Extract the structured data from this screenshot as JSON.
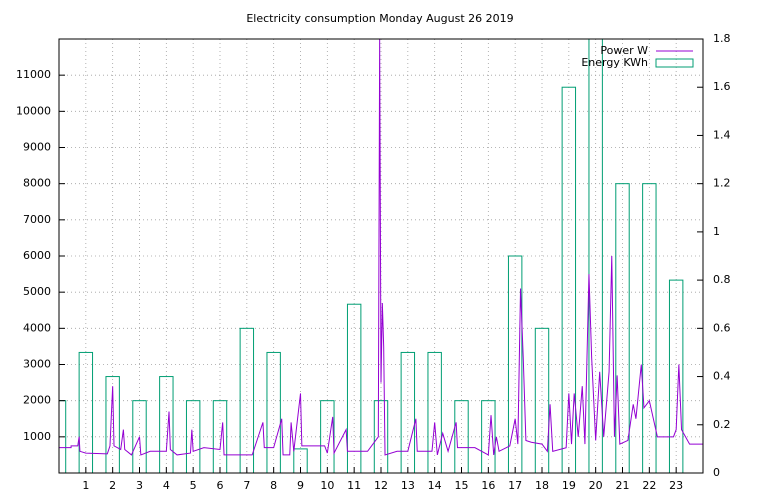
{
  "chart_data": {
    "type": "line",
    "title": "Electricity consumption Monday August 26 2019",
    "xlim": [
      0,
      24
    ],
    "ylim": [
      0,
      12000
    ],
    "y2lim": [
      0,
      1.8
    ],
    "xticks": [
      1,
      2,
      3,
      4,
      5,
      6,
      7,
      8,
      9,
      10,
      11,
      12,
      13,
      14,
      15,
      16,
      17,
      18,
      19,
      20,
      21,
      22,
      23
    ],
    "yticks": [
      1000,
      2000,
      3000,
      4000,
      5000,
      6000,
      7000,
      8000,
      9000,
      10000,
      11000
    ],
    "y2ticks": [
      0,
      0.2,
      0.4,
      0.6,
      0.8,
      1,
      1.2,
      1.4,
      1.6,
      1.8
    ],
    "grid": true,
    "legend": "top-right",
    "series": [
      {
        "name": "Power W",
        "type": "line",
        "color": "#9400d3",
        "x": [
          0,
          0.45,
          0.45,
          0.7,
          0.75,
          0.78,
          1,
          1.8,
          1.9,
          2.0,
          2.05,
          2.3,
          2.4,
          2.45,
          2.7,
          3.0,
          3.05,
          3.4,
          4.0,
          4.1,
          4.15,
          4.4,
          4.9,
          4.95,
          5.0,
          5.4,
          6.0,
          6.1,
          6.15,
          6.8,
          7.2,
          7.6,
          7.65,
          8.0,
          8.3,
          8.35,
          8.6,
          8.65,
          8.75,
          9.0,
          9.05,
          9.9,
          10.0,
          10.2,
          10.25,
          10.7,
          10.75,
          11.5,
          11.9,
          11.95,
          12.0,
          12.05,
          12.1,
          12.15,
          12.6,
          13.0,
          13.3,
          13.35,
          13.9,
          14.0,
          14.1,
          14.3,
          14.5,
          14.8,
          14.85,
          15.5,
          16.0,
          16.1,
          16.2,
          16.3,
          16.4,
          16.8,
          17.0,
          17.1,
          17.2,
          17.3,
          17.4,
          17.6,
          18.0,
          18.2,
          18.3,
          18.4,
          18.9,
          19.0,
          19.1,
          19.2,
          19.35,
          19.5,
          19.6,
          19.75,
          19.85,
          20.0,
          20.15,
          20.3,
          20.5,
          20.6,
          20.7,
          20.8,
          20.9,
          21.2,
          21.4,
          21.5,
          21.7,
          21.8,
          22.0,
          22.3,
          22.9,
          23.0,
          23.1,
          23.2,
          23.5,
          24.0
        ],
        "values": [
          700,
          700,
          750,
          750,
          1000,
          600,
          550,
          530,
          750,
          2400,
          750,
          650,
          1200,
          650,
          500,
          1000,
          500,
          600,
          600,
          1700,
          650,
          500,
          550,
          1200,
          600,
          700,
          650,
          1400,
          500,
          500,
          500,
          1400,
          700,
          700,
          1500,
          500,
          500,
          1400,
          600,
          2200,
          750,
          750,
          550,
          1550,
          550,
          1200,
          600,
          600,
          1000,
          12000,
          2500,
          4700,
          3500,
          500,
          600,
          600,
          1500,
          600,
          600,
          1400,
          500,
          1100,
          600,
          1400,
          700,
          700,
          500,
          1600,
          500,
          1000,
          600,
          750,
          1500,
          800,
          5100,
          3200,
          900,
          850,
          800,
          600,
          1900,
          600,
          700,
          2200,
          800,
          2200,
          1000,
          2400,
          800,
          5500,
          3200,
          900,
          2800,
          1000,
          2800,
          6000,
          1000,
          2700,
          800,
          900,
          1900,
          1500,
          3000,
          1800,
          2000,
          1000,
          1000,
          1200,
          3000,
          1200,
          800,
          800
        ]
      },
      {
        "name": "Energy KWh",
        "type": "box",
        "axis": "y2",
        "color": "#009e73",
        "x": [
          0,
          1,
          2,
          3,
          4,
          5,
          6,
          7,
          8,
          9,
          10,
          11,
          12,
          13,
          14,
          15,
          16,
          17,
          18,
          19,
          20,
          21,
          22,
          23
        ],
        "values": [
          0.3,
          0.5,
          0.4,
          0.3,
          0.4,
          0.3,
          0.3,
          0.6,
          0.5,
          0.1,
          0.3,
          0.7,
          0.3,
          0.5,
          0.5,
          0.3,
          0.3,
          0.9,
          0.6,
          1.6,
          1.9,
          1.2,
          1.2,
          0.8
        ]
      }
    ]
  }
}
